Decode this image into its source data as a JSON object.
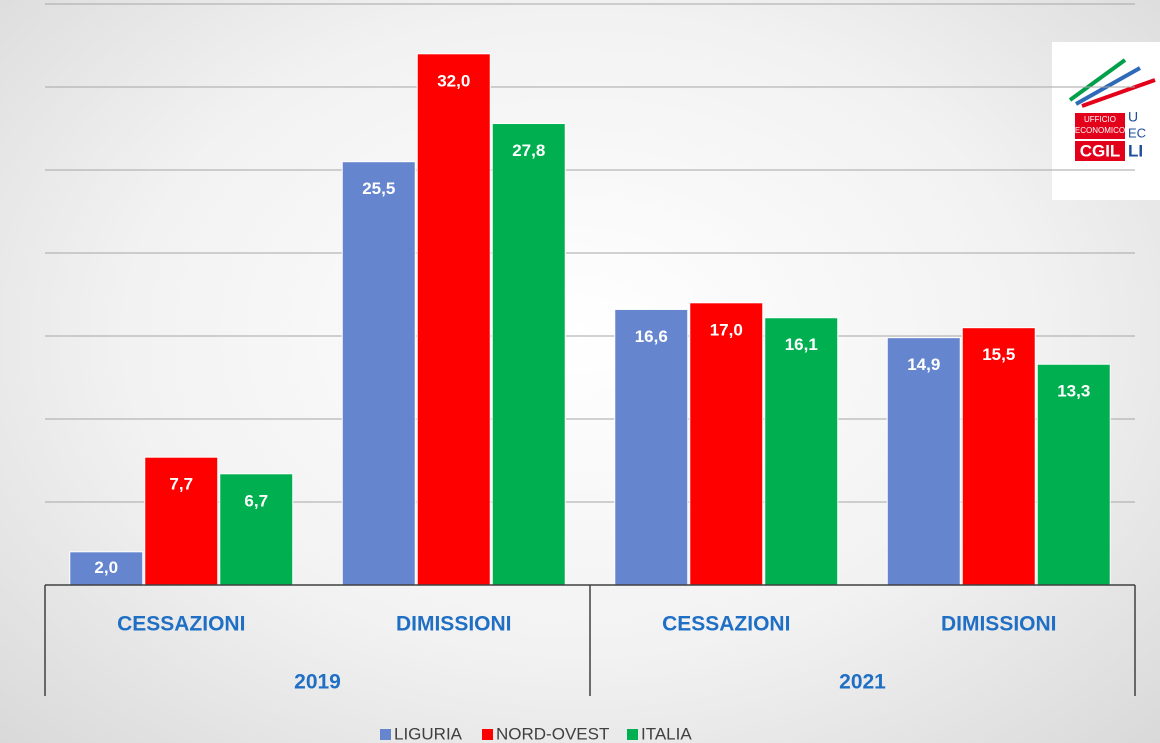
{
  "chart_data": {
    "type": "bar",
    "groups": [
      "2019",
      "2021"
    ],
    "categories": [
      "CESSAZIONI",
      "DIMISSIONI",
      "CESSAZIONI",
      "DIMISSIONI"
    ],
    "series": [
      {
        "name": "LIGURIA",
        "color": "#6585cf",
        "values": [
          2.0,
          25.5,
          16.6,
          14.9
        ],
        "value_labels": [
          "2,0",
          "25,5",
          "16,6",
          "14,9"
        ]
      },
      {
        "name": "NORD-OVEST",
        "color": "#ff0000",
        "values": [
          7.7,
          32.0,
          17.0,
          15.5
        ],
        "value_labels": [
          "7,7",
          "32,0",
          "17,0",
          "15,5"
        ]
      },
      {
        "name": "ITALIA",
        "color": "#00b050",
        "values": [
          6.7,
          27.8,
          16.1,
          13.3
        ],
        "value_labels": [
          "6,7",
          "27,8",
          "16,1",
          "13,3"
        ]
      }
    ],
    "ylim": [
      0,
      35
    ],
    "yticks": [
      0,
      5,
      10,
      15,
      20,
      25,
      30,
      35
    ],
    "grid": true,
    "legend": "bottom"
  },
  "logo": {
    "line1": "UFFICIO",
    "line2": "ECONOMICO",
    "brand": "CGIL",
    "side1": "U",
    "side2": "EC",
    "side3": "LI"
  }
}
